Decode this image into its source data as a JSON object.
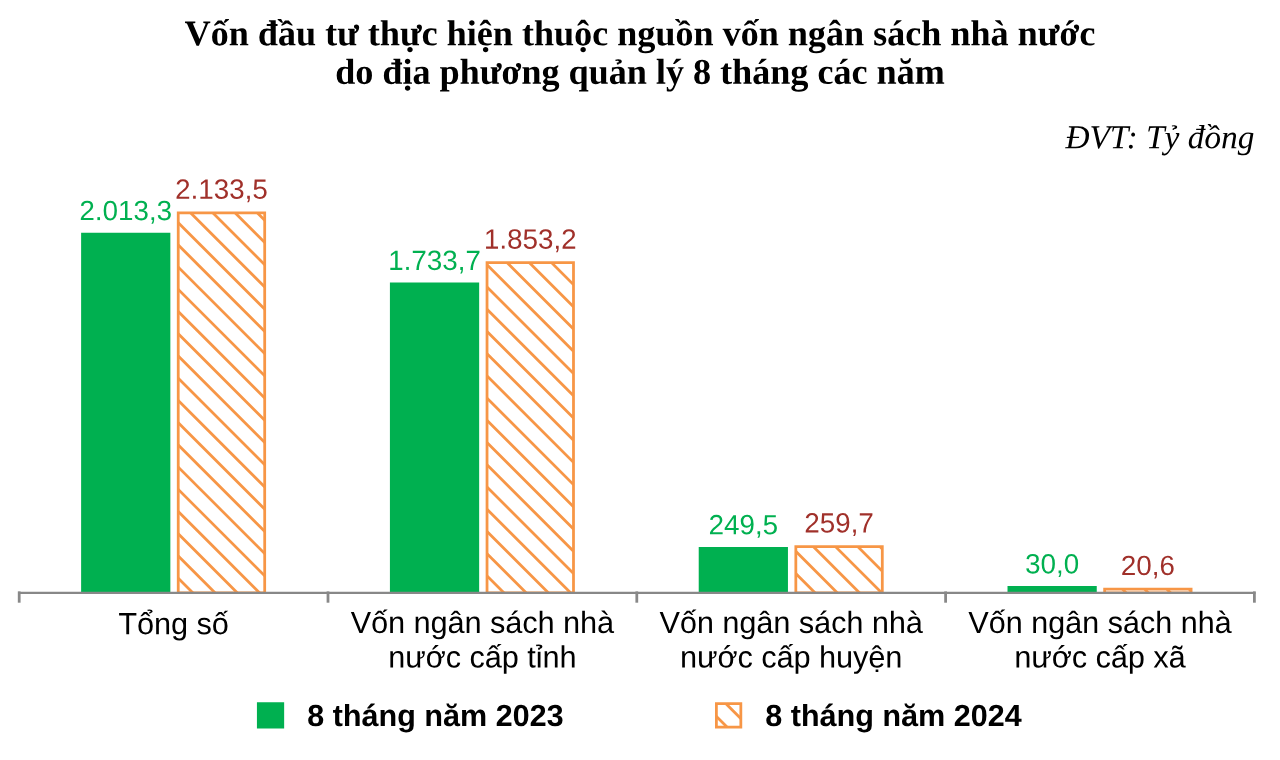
{
  "chart_data": {
    "type": "bar",
    "title": "Vốn đầu tư thực hiện thuộc nguồn vốn ngân sách nhà nước\ndo địa phương quản lý 8 tháng các năm",
    "annotations": [
      "ĐVT: Tỷ đồng"
    ],
    "categories": [
      "Tổng số",
      "Vốn ngân sách nhà\nnước cấp tỉnh",
      "Vốn ngân sách nhà\nnước cấp huyện",
      "Vốn ngân sách nhà\nnước cấp xã"
    ],
    "series": [
      {
        "name": "8 tháng năm 2023",
        "color": "#00b050",
        "values": [
          2013.3,
          1733.7,
          249.5,
          30.0
        ],
        "value_labels": [
          "2.013,3",
          "1.733,7",
          "249,5",
          "30,0"
        ]
      },
      {
        "name": "8 tháng năm 2024",
        "color": "#f79646",
        "values": [
          2133.5,
          1853.2,
          259.7,
          20.6
        ],
        "value_labels": [
          "2.133,5",
          "1.853,2",
          "259,7",
          "20,6"
        ]
      }
    ],
    "legend": "bottom",
    "grid": false
  }
}
